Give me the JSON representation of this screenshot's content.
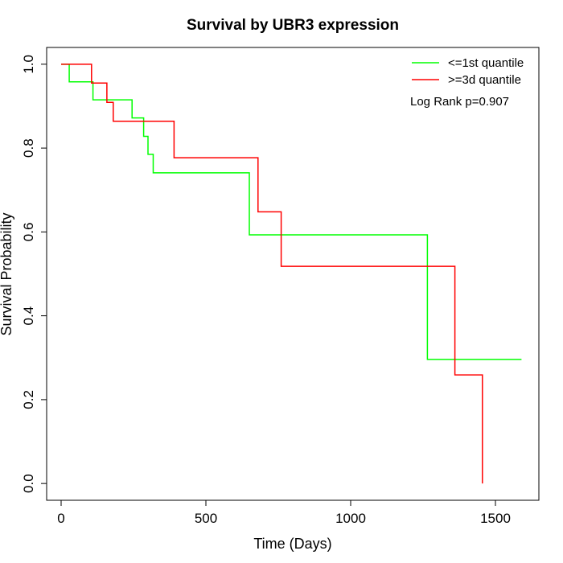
{
  "chart_data": {
    "type": "line",
    "title": "Survival by UBR3 expression",
    "xlabel": "Time (Days)",
    "ylabel": "Survival Probability",
    "xlim": [
      -50,
      1650
    ],
    "ylim": [
      -0.04,
      1.04
    ],
    "x_ticks": [
      0,
      500,
      1000,
      1500
    ],
    "y_ticks": [
      0.0,
      0.2,
      0.4,
      0.6,
      0.8,
      1.0
    ],
    "x_tick_labels": [
      "0",
      "500",
      "1000",
      "1500"
    ],
    "y_tick_labels": [
      "0.0",
      "0.2",
      "0.4",
      "0.6",
      "0.8",
      "1.0"
    ],
    "grid": false,
    "legend_position": "top-right",
    "annotation": "Log Rank p=0.907",
    "series": [
      {
        "name": "<=1st quantile",
        "color": "#00ff00",
        "step": true,
        "x": [
          0,
          28,
          110,
          245,
          285,
          300,
          318,
          650,
          1265,
          1590
        ],
        "y": [
          1.0,
          0.958,
          0.915,
          0.872,
          0.828,
          0.785,
          0.741,
          0.593,
          0.296,
          0.296
        ]
      },
      {
        "name": ">=3d quantile",
        "color": "#ff0000",
        "step": true,
        "x": [
          0,
          105,
          158,
          180,
          390,
          680,
          760,
          1360,
          1455,
          1455
        ],
        "y": [
          1.0,
          0.955,
          0.909,
          0.864,
          0.777,
          0.648,
          0.518,
          0.259,
          0.0,
          0.0
        ]
      }
    ]
  }
}
